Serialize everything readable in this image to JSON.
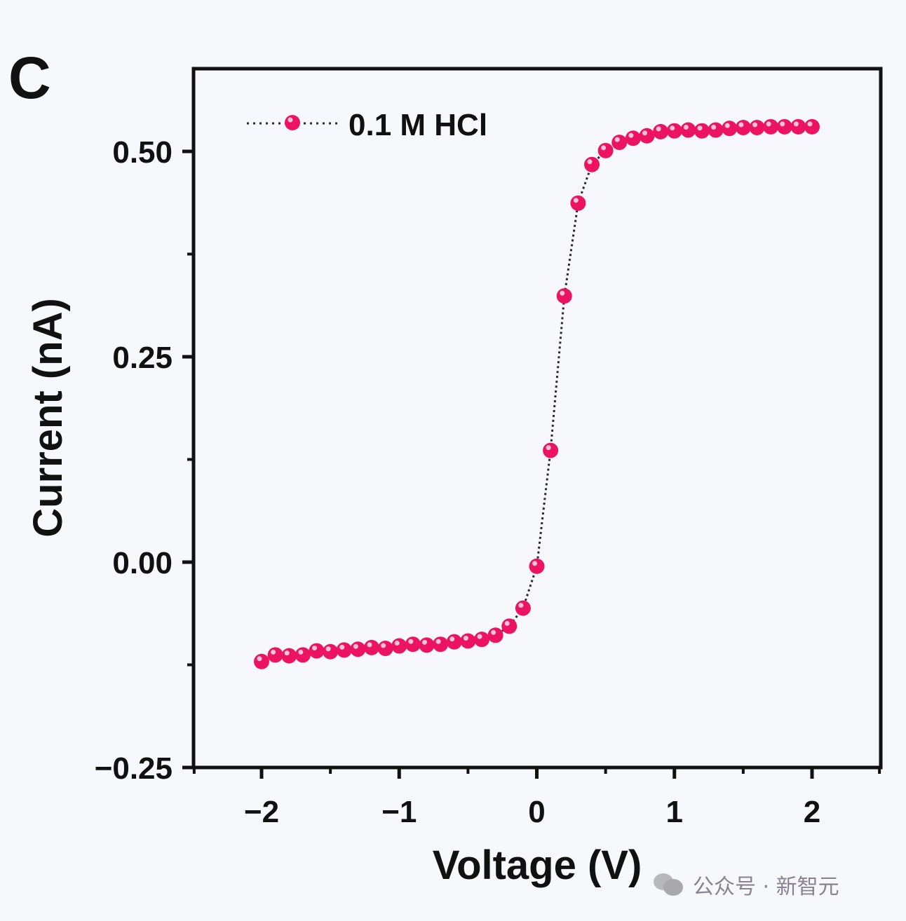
{
  "panel_label": "C",
  "watermark": {
    "text": "公众号 · 新智元",
    "icon": "wechat-icon"
  },
  "chart_data": {
    "type": "scatter",
    "title": "",
    "xlabel": "Voltage (V)",
    "ylabel": "Current (nA)",
    "xlim": [
      -2.5,
      2.5
    ],
    "ylim": [
      -0.25,
      0.6
    ],
    "xticks": [
      -2,
      -1,
      0,
      1,
      2
    ],
    "xtick_labels": [
      "−2",
      "−1",
      "0",
      "1",
      "2"
    ],
    "yticks": [
      -0.25,
      0.0,
      0.25,
      0.5
    ],
    "ytick_labels": [
      "−0.25",
      "0.00",
      "0.25",
      "0.50"
    ],
    "grid": false,
    "legend": {
      "placement": "top-left",
      "entries": [
        "0.1 M HCl"
      ]
    },
    "series": [
      {
        "name": "0.1 M HCl",
        "color": "#ec1460",
        "line_style": "dotted",
        "line_color": "#2a2540",
        "x": [
          -2.0,
          -1.9,
          -1.8,
          -1.7,
          -1.6,
          -1.5,
          -1.4,
          -1.3,
          -1.2,
          -1.1,
          -1.0,
          -0.9,
          -0.8,
          -0.7,
          -0.6,
          -0.5,
          -0.4,
          -0.3,
          -0.2,
          -0.1,
          0.0,
          0.1,
          0.2,
          0.3,
          0.4,
          0.5,
          0.6,
          0.7,
          0.8,
          0.9,
          1.0,
          1.1,
          1.2,
          1.3,
          1.4,
          1.5,
          1.6,
          1.7,
          1.8,
          1.9,
          2.0
        ],
        "y": [
          -0.121,
          -0.113,
          -0.114,
          -0.113,
          -0.108,
          -0.109,
          -0.107,
          -0.106,
          -0.104,
          -0.105,
          -0.102,
          -0.1,
          -0.101,
          -0.1,
          -0.097,
          -0.096,
          -0.094,
          -0.089,
          -0.078,
          -0.056,
          -0.005,
          0.136,
          0.324,
          0.437,
          0.484,
          0.501,
          0.511,
          0.516,
          0.519,
          0.524,
          0.525,
          0.526,
          0.525,
          0.526,
          0.528,
          0.529,
          0.529,
          0.53,
          0.53,
          0.53,
          0.53
        ]
      }
    ]
  }
}
